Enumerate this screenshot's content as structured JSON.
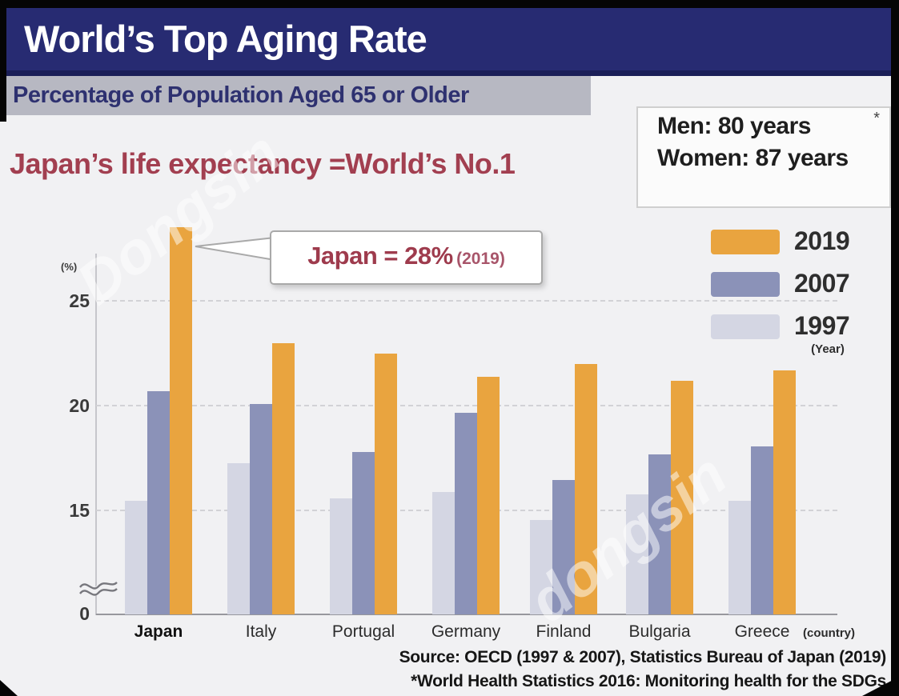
{
  "title": "World’s Top Aging Rate",
  "subtitle": "Percentage of Population Aged 65 or Older",
  "headline": "Japan’s life expectancy =World’s No.1",
  "life_expectancy_box": {
    "asterisk": "*",
    "men_line": "Men: 80 years",
    "women_line": "Women: 87 years"
  },
  "callout": {
    "main": "Japan = 28%",
    "suffix": "(2019)"
  },
  "legend": {
    "entries": [
      {
        "label": "2019",
        "color": "#e9a43f"
      },
      {
        "label": "2007",
        "color": "#8b92b8"
      },
      {
        "label": "1997",
        "color": "#d4d6e3"
      }
    ],
    "unit_note": "(Year)"
  },
  "axis": {
    "unit_label": "(%)",
    "tick_25": "25",
    "tick_20": "20",
    "tick_15": "15",
    "tick_0": "0",
    "country_note": "(country)"
  },
  "source": {
    "line1": "Source: OECD (1997 & 2007), Statistics Bureau of Japan (2019)",
    "line2": "*World Health Statistics 2016: Monitoring health for the SDGs"
  },
  "watermarks": {
    "first": "Dongsin",
    "second": "dongsin"
  },
  "colors": {
    "banner_navy": "#272b72",
    "headline_maroon": "#a23f50",
    "callout_maroon": "#9e3b4d",
    "background": "#f1f1f3"
  },
  "chart_data": {
    "type": "bar",
    "categories": [
      "Japan",
      "Italy",
      "Portugal",
      "Germany",
      "Finland",
      "Bulgaria",
      "Greece"
    ],
    "series": [
      {
        "name": "1997",
        "color": "#d4d6e3",
        "values": [
          15.4,
          17.2,
          15.5,
          15.8,
          14.5,
          15.7,
          15.4
        ]
      },
      {
        "name": "2007",
        "color": "#8b92b8",
        "values": [
          20.6,
          20.0,
          17.7,
          19.6,
          16.4,
          17.6,
          18.0
        ]
      },
      {
        "name": "2019",
        "color": "#e9a43f",
        "values": [
          28.4,
          22.9,
          22.4,
          21.3,
          21.9,
          21.1,
          21.6
        ]
      }
    ],
    "title": "World's Top Aging Rate — Percentage of Population Aged 65 or Older",
    "xlabel": "(country)",
    "ylabel": "(%)",
    "yticks": [
      0,
      15,
      20,
      25
    ],
    "axis_break_between": [
      0,
      13
    ],
    "ylim": [
      0,
      29
    ],
    "legend_position": "right",
    "grid": "dashed horizontal at 15, 20, 25",
    "annotation": "Japan = 28% (2019)"
  }
}
